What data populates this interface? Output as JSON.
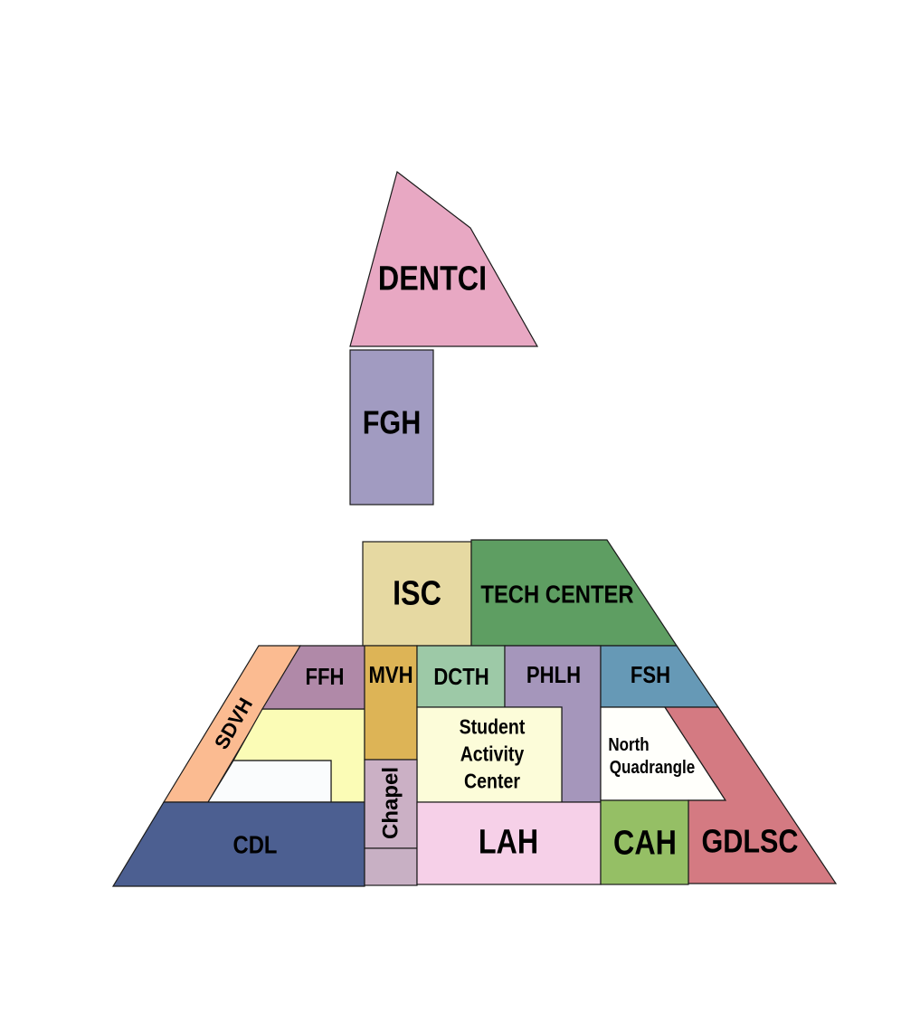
{
  "buildings": {
    "dentci": {
      "label": "DENTCI",
      "color": "#e8a8c3"
    },
    "fgh": {
      "label": "FGH",
      "color": "#a19bc1"
    },
    "isc": {
      "label": "ISC",
      "color": "#e6d9a2"
    },
    "tech": {
      "label": "TECH CENTER",
      "color": "#5e9e62"
    },
    "sdvh": {
      "label": "SDVH",
      "color": "#fbbb91"
    },
    "ffh": {
      "label": "FFH",
      "color": "#b089a8"
    },
    "mvh": {
      "label": "MVH",
      "color": "#ddb456"
    },
    "dcth": {
      "label": "DCTH",
      "color": "#9dc9a7"
    },
    "phlh": {
      "label": "PHLH",
      "color": "#a596bb"
    },
    "fsh": {
      "label": "FSH",
      "color": "#6699b6"
    },
    "sac": {
      "label1": "Student",
      "label2": "Activity",
      "label3": "Center",
      "color": "#fcfcd9"
    },
    "north": {
      "label1": "North",
      "label2": "Quadrangle",
      "color": "#fffffb"
    },
    "gdlsc": {
      "label": "GDLSC",
      "color": "#d47a82"
    },
    "chapel": {
      "label": "Chapel",
      "color": "#cbb0c5"
    },
    "lah": {
      "label": "LAH",
      "color": "#f6d0e8"
    },
    "cah": {
      "label": "CAH",
      "color": "#95bf65"
    },
    "cdl": {
      "label": "CDL",
      "color": "#4c5f91"
    },
    "courtyard_yellow": {
      "color": "#fbfcb6"
    },
    "courtyard_white": {
      "color": "#fafcfd"
    },
    "chapel_base": {
      "color": "#c8b0c4"
    }
  }
}
